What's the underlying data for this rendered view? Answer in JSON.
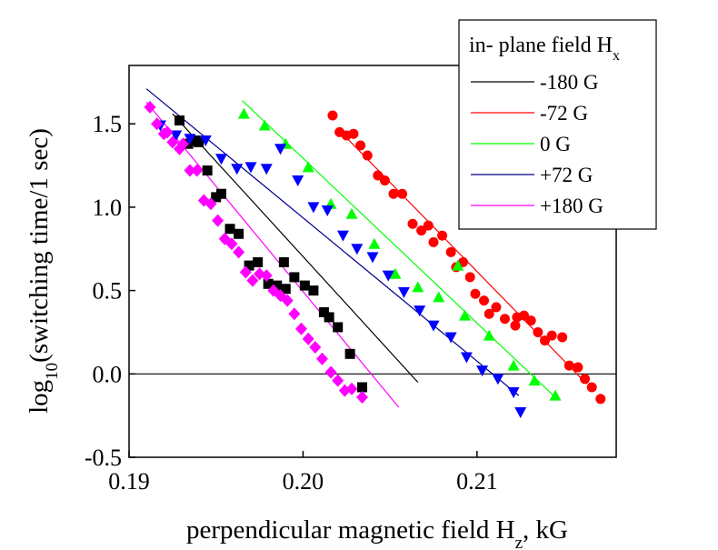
{
  "chart_data": {
    "type": "scatter",
    "xlabel_main": "perpendicular magnetic field H",
    "xlabel_sub": "z",
    "xlabel_end": ", kG",
    "ylabel_pre": "log",
    "ylabel_sub": "10",
    "ylabel_post": "(switching time/1 sec)",
    "xlim": [
      0.19,
      0.218
    ],
    "ylim": [
      -0.5,
      1.85
    ],
    "xticks": [
      0.19,
      0.2,
      0.21
    ],
    "xtick_labels": [
      "0.19",
      "0.20",
      "0.21"
    ],
    "yticks": [
      -0.5,
      0.0,
      0.5,
      1.0,
      1.5
    ],
    "ytick_labels": [
      "-0.5",
      "0.0",
      "0.5",
      "1.0",
      "1.5"
    ],
    "zero_line": true,
    "legend": {
      "title_main": "in- plane field H",
      "title_sub": "x",
      "placement": "top-right"
    },
    "series": [
      {
        "name": "-180 G",
        "color": "#000000",
        "marker": "square",
        "line": [
          [
            0.1925,
            1.56
          ],
          [
            0.2066,
            -0.05
          ]
        ],
        "points": [
          [
            0.1929,
            1.52
          ],
          [
            0.1934,
            1.38
          ],
          [
            0.1938,
            1.4
          ],
          [
            0.194,
            1.39
          ],
          [
            0.1945,
            1.22
          ],
          [
            0.195,
            1.06
          ],
          [
            0.1953,
            1.08
          ],
          [
            0.1958,
            0.87
          ],
          [
            0.1963,
            0.84
          ],
          [
            0.1969,
            0.65
          ],
          [
            0.1974,
            0.67
          ],
          [
            0.198,
            0.54
          ],
          [
            0.1985,
            0.53
          ],
          [
            0.1989,
            0.67
          ],
          [
            0.199,
            0.51
          ],
          [
            0.1995,
            0.58
          ],
          [
            0.2001,
            0.53
          ],
          [
            0.2006,
            0.5
          ],
          [
            0.2012,
            0.37
          ],
          [
            0.2015,
            0.34
          ],
          [
            0.202,
            0.28
          ],
          [
            0.2027,
            0.12
          ],
          [
            0.2034,
            -0.08
          ]
        ]
      },
      {
        "name": "-72 G",
        "color": "#ff0000",
        "marker": "circle",
        "line": [
          [
            0.202,
            1.47
          ],
          [
            0.2163,
            -0.06
          ]
        ],
        "points": [
          [
            0.2017,
            1.55
          ],
          [
            0.2021,
            1.45
          ],
          [
            0.2025,
            1.43
          ],
          [
            0.2029,
            1.44
          ],
          [
            0.2033,
            1.37
          ],
          [
            0.2037,
            1.31
          ],
          [
            0.2043,
            1.19
          ],
          [
            0.2047,
            1.16
          ],
          [
            0.2052,
            1.08
          ],
          [
            0.2057,
            1.08
          ],
          [
            0.2063,
            0.9
          ],
          [
            0.2068,
            0.86
          ],
          [
            0.2072,
            0.89
          ],
          [
            0.2075,
            0.79
          ],
          [
            0.208,
            0.83
          ],
          [
            0.2085,
            0.73
          ],
          [
            0.2088,
            0.64
          ],
          [
            0.2092,
            0.67
          ],
          [
            0.2096,
            0.58
          ],
          [
            0.2099,
            0.48
          ],
          [
            0.2104,
            0.44
          ],
          [
            0.2107,
            0.36
          ],
          [
            0.2111,
            0.4
          ],
          [
            0.2116,
            0.33
          ],
          [
            0.2122,
            0.29
          ],
          [
            0.2123,
            0.34
          ],
          [
            0.2127,
            0.35
          ],
          [
            0.2131,
            0.32
          ],
          [
            0.2135,
            0.25
          ],
          [
            0.2139,
            0.2
          ],
          [
            0.2143,
            0.23
          ],
          [
            0.2149,
            0.22
          ],
          [
            0.2153,
            0.05
          ],
          [
            0.2158,
            0.04
          ],
          [
            0.2162,
            -0.03
          ],
          [
            0.2166,
            -0.08
          ],
          [
            0.2171,
            -0.15
          ]
        ]
      },
      {
        "name": "0 G",
        "color": "#00ff00",
        "marker": "triangle-up",
        "line": [
          [
            0.1965,
            1.64
          ],
          [
            0.2146,
            -0.15
          ]
        ],
        "points": [
          [
            0.1966,
            1.56
          ],
          [
            0.1978,
            1.49
          ],
          [
            0.199,
            1.38
          ],
          [
            0.2003,
            1.24
          ],
          [
            0.2016,
            1.02
          ],
          [
            0.2028,
            0.96
          ],
          [
            0.2041,
            0.78
          ],
          [
            0.2053,
            0.6
          ],
          [
            0.2066,
            0.52
          ],
          [
            0.2078,
            0.46
          ],
          [
            0.2089,
            0.65
          ],
          [
            0.2093,
            0.35
          ],
          [
            0.2107,
            0.23
          ],
          [
            0.2121,
            0.05
          ],
          [
            0.2133,
            -0.04
          ],
          [
            0.2145,
            -0.13
          ]
        ]
      },
      {
        "name": "+72 G",
        "color": "#0000ff",
        "marker": "triangle-down",
        "line": [
          [
            0.191,
            1.71
          ],
          [
            0.2124,
            -0.13
          ]
        ],
        "points": [
          [
            0.1918,
            1.49
          ],
          [
            0.1927,
            1.43
          ],
          [
            0.1935,
            1.41
          ],
          [
            0.1944,
            1.4
          ],
          [
            0.1953,
            1.29
          ],
          [
            0.1962,
            1.23
          ],
          [
            0.197,
            1.24
          ],
          [
            0.1979,
            1.23
          ],
          [
            0.1987,
            1.35
          ],
          [
            0.1997,
            1.16
          ],
          [
            0.2006,
            1.0
          ],
          [
            0.2014,
            0.98
          ],
          [
            0.2023,
            0.83
          ],
          [
            0.2031,
            0.75
          ],
          [
            0.204,
            0.7
          ],
          [
            0.2049,
            0.59
          ],
          [
            0.2058,
            0.49
          ],
          [
            0.2067,
            0.38
          ],
          [
            0.2075,
            0.29
          ],
          [
            0.2085,
            0.22
          ],
          [
            0.2094,
            0.1
          ],
          [
            0.2103,
            0.02
          ],
          [
            0.2112,
            -0.03
          ],
          [
            0.2121,
            -0.11
          ],
          [
            0.2125,
            -0.23
          ]
        ]
      },
      {
        "name": "+180 G",
        "color": "#ff00ff",
        "marker": "diamond",
        "line": [
          [
            0.191,
            1.63
          ],
          [
            0.2055,
            -0.2
          ]
        ],
        "points": [
          [
            0.1912,
            1.6
          ],
          [
            0.1916,
            1.5
          ],
          [
            0.192,
            1.44
          ],
          [
            0.1922,
            1.45
          ],
          [
            0.1925,
            1.39
          ],
          [
            0.1929,
            1.35
          ],
          [
            0.1931,
            1.38
          ],
          [
            0.1935,
            1.22
          ],
          [
            0.1939,
            1.22
          ],
          [
            0.1943,
            1.04
          ],
          [
            0.1947,
            1.02
          ],
          [
            0.1951,
            0.92
          ],
          [
            0.1955,
            0.81
          ],
          [
            0.1959,
            0.78
          ],
          [
            0.1963,
            0.73
          ],
          [
            0.1967,
            0.61
          ],
          [
            0.1971,
            0.56
          ],
          [
            0.1975,
            0.6
          ],
          [
            0.1979,
            0.59
          ],
          [
            0.1983,
            0.5
          ],
          [
            0.1987,
            0.47
          ],
          [
            0.1991,
            0.44
          ],
          [
            0.1995,
            0.36
          ],
          [
            0.1999,
            0.27
          ],
          [
            0.2003,
            0.21
          ],
          [
            0.2007,
            0.16
          ],
          [
            0.2011,
            0.09
          ],
          [
            0.2016,
            0.01
          ],
          [
            0.202,
            -0.04
          ],
          [
            0.2024,
            -0.1
          ],
          [
            0.2028,
            -0.09
          ],
          [
            0.2034,
            -0.14
          ]
        ]
      }
    ]
  }
}
